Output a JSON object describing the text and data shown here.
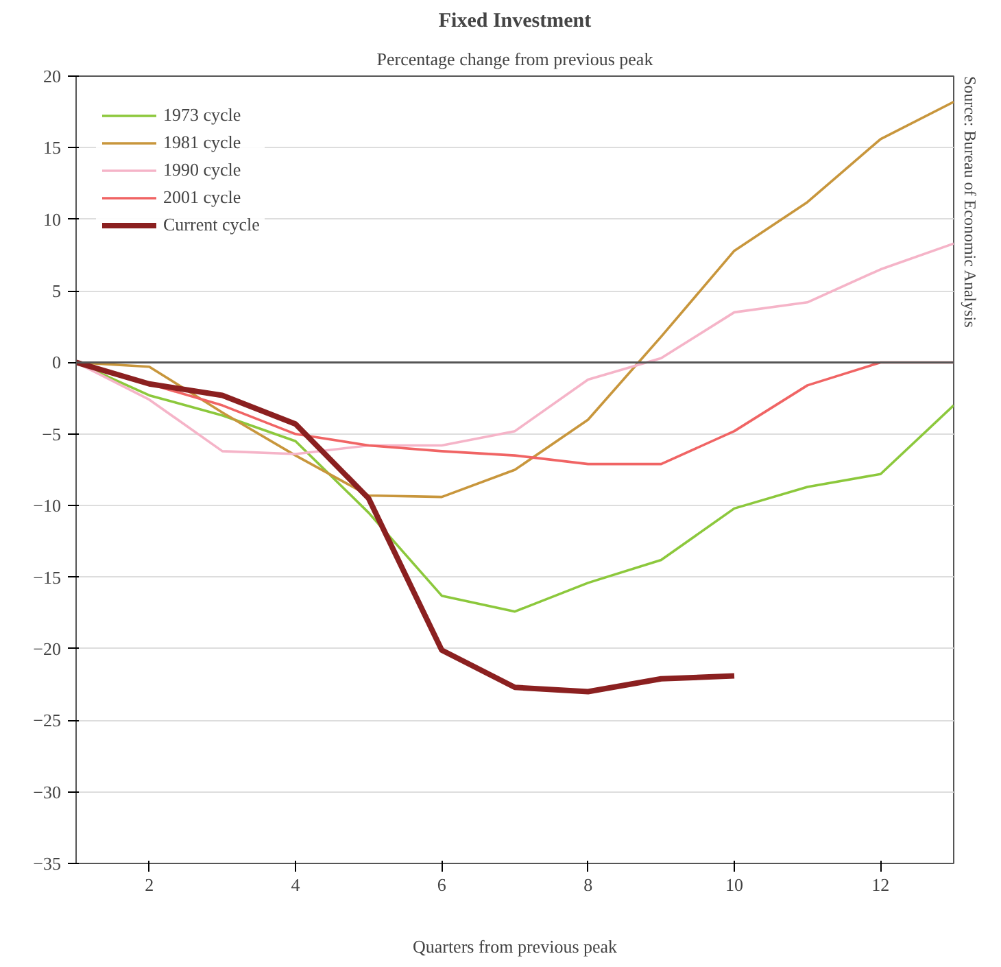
{
  "chart_data": {
    "type": "line",
    "title": "Fixed Investment",
    "subtitle": "Percentage change from previous peak",
    "xlabel": "Quarters from previous peak",
    "x": [
      1,
      2,
      3,
      4,
      5,
      6,
      7,
      8,
      9,
      10,
      11,
      12,
      13
    ],
    "series": [
      {
        "name": "1973 cycle",
        "color": "#8cc83c",
        "values": [
          0,
          -2.3,
          -3.7,
          -5.5,
          -10.5,
          -16.3,
          -17.4,
          -15.4,
          -13.8,
          -10.2,
          -8.7,
          -7.8,
          -3.0
        ]
      },
      {
        "name": "1981 cycle",
        "color": "#c8963c",
        "values": [
          0,
          -0.3,
          -3.5,
          -6.5,
          -9.3,
          -9.4,
          -7.5,
          -4.0,
          1.8,
          7.8,
          11.2,
          15.6,
          18.2
        ]
      },
      {
        "name": "1990 cycle",
        "color": "#f5b4c8",
        "values": [
          0,
          -2.6,
          -6.2,
          -6.4,
          -5.8,
          -5.8,
          -4.8,
          -1.2,
          0.3,
          3.5,
          4.2,
          6.5,
          8.3
        ]
      },
      {
        "name": "2001 cycle",
        "color": "#f06464",
        "values": [
          0,
          -1.5,
          -3.0,
          -5.0,
          -5.8,
          -6.2,
          -6.5,
          -7.1,
          -7.1,
          -4.8,
          -1.6,
          0,
          0
        ]
      },
      {
        "name": "Current cycle",
        "color": "#8b2020",
        "values": [
          0,
          -1.5,
          -2.3,
          -4.3,
          -9.5,
          -20.1,
          -22.7,
          -23.0,
          -22.1,
          -21.9,
          null,
          null,
          null
        ]
      }
    ],
    "xlim": [
      1,
      13
    ],
    "xticks": [
      2,
      4,
      6,
      8,
      10,
      12
    ],
    "ylim": [
      -35,
      20
    ],
    "yticks": [
      -35,
      -30,
      -25,
      -20,
      -15,
      -10,
      -5,
      0,
      5,
      10,
      15,
      20
    ],
    "grid": "y",
    "legend": "top left",
    "line_style": "solid",
    "marker": "none",
    "ref_lines": [
      {
        "axis": "y",
        "value": 0,
        "color": "#555555"
      }
    ],
    "annotations": [
      "Source: Bureau of Economic Analysis"
    ]
  }
}
